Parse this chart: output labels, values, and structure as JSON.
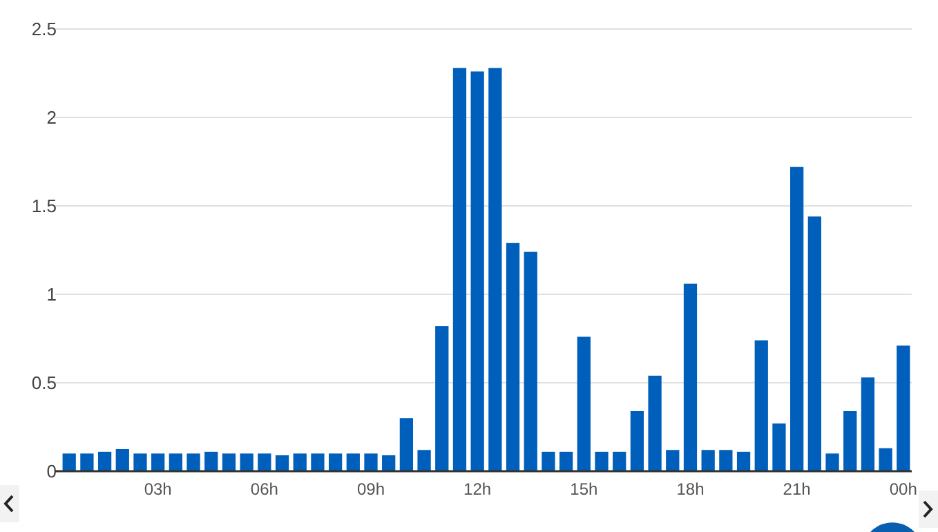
{
  "chart_data": {
    "type": "bar",
    "categories": [
      null,
      null,
      null,
      null,
      null,
      "03h",
      null,
      null,
      null,
      null,
      null,
      "06h",
      null,
      null,
      null,
      null,
      null,
      "09h",
      null,
      null,
      null,
      null,
      null,
      "12h",
      null,
      null,
      null,
      null,
      null,
      "15h",
      null,
      null,
      null,
      null,
      null,
      "18h",
      null,
      null,
      null,
      null,
      null,
      "21h",
      null,
      null,
      null,
      null,
      null,
      "00h"
    ],
    "values": [
      0.1,
      0.1,
      0.11,
      0.125,
      0.1,
      0.1,
      0.1,
      0.1,
      0.11,
      0.1,
      0.1,
      0.1,
      0.09,
      0.1,
      0.1,
      0.1,
      0.1,
      0.1,
      0.09,
      0.3,
      0.12,
      0.82,
      2.28,
      2.26,
      2.28,
      1.29,
      1.24,
      0.11,
      0.11,
      0.76,
      0.11,
      0.11,
      0.34,
      0.54,
      0.12,
      1.06,
      0.12,
      0.12,
      0.11,
      0.74,
      0.27,
      1.72,
      1.44,
      0.1,
      0.34,
      0.53,
      0.13,
      0.71
    ],
    "color": "#005fba",
    "ylim": [
      0,
      2.5
    ],
    "yticks": [
      0,
      0.5,
      1,
      1.5,
      2,
      2.5
    ],
    "grid": "y"
  }
}
